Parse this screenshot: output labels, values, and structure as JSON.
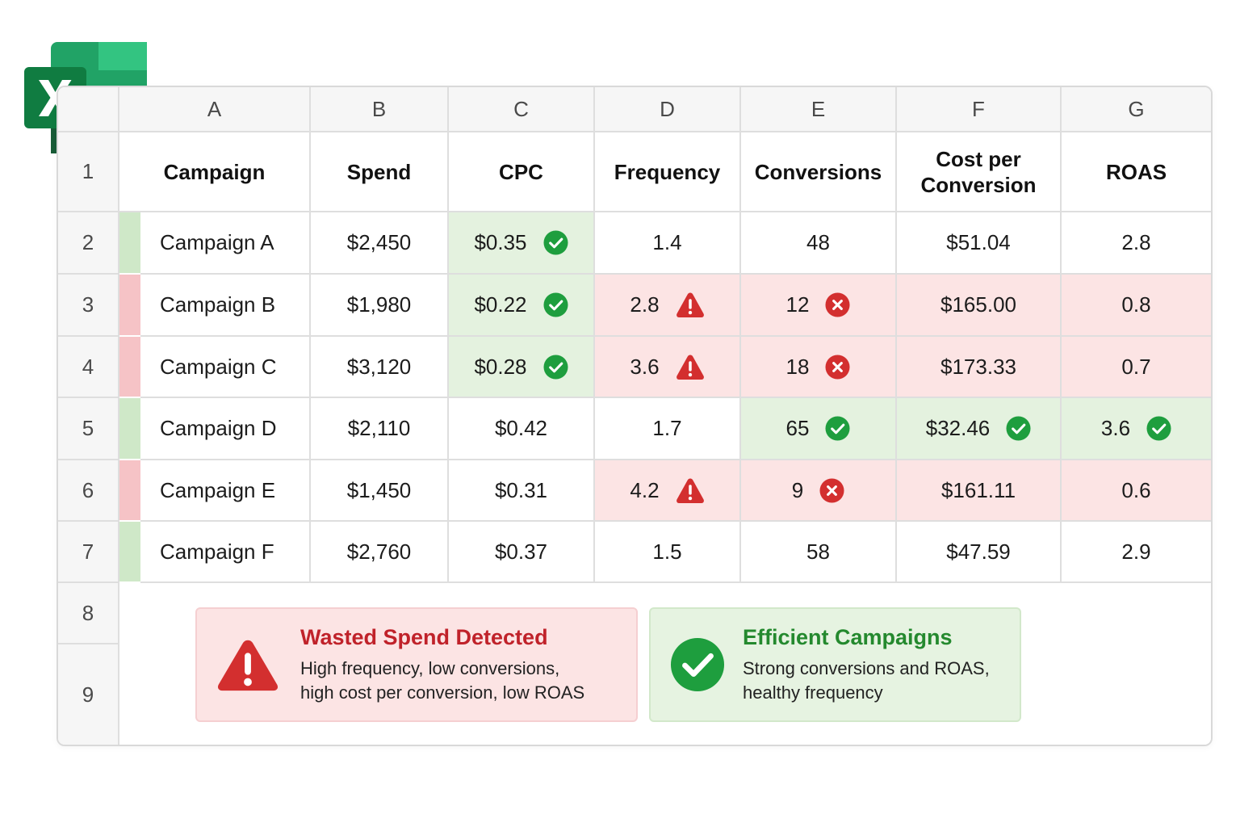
{
  "columns": [
    "A",
    "B",
    "C",
    "D",
    "E",
    "F",
    "G"
  ],
  "row_numbers": [
    "1",
    "2",
    "3",
    "4",
    "5",
    "6",
    "7",
    "8",
    "9"
  ],
  "headers": {
    "campaign": "Campaign",
    "spend": "Spend",
    "cpc": "CPC",
    "frequency": "Frequency",
    "conversions": "Conversions",
    "cost_per_conversion_line1": "Cost per",
    "cost_per_conversion_line2": "Conversion",
    "roas": "ROAS"
  },
  "rows": [
    {
      "campaign": "Campaign A",
      "spend": "$2,450",
      "cpc": "$0.35",
      "frequency": "1.4",
      "conversions": "48",
      "cost_per_conversion": "$51.04",
      "roas": "2.8",
      "status": "good"
    },
    {
      "campaign": "Campaign B",
      "spend": "$1,980",
      "cpc": "$0.22",
      "frequency": "2.8",
      "conversions": "12",
      "cost_per_conversion": "$165.00",
      "roas": "0.8",
      "status": "bad"
    },
    {
      "campaign": "Campaign C",
      "spend": "$3,120",
      "cpc": "$0.28",
      "frequency": "3.6",
      "conversions": "18",
      "cost_per_conversion": "$173.33",
      "roas": "0.7",
      "status": "bad"
    },
    {
      "campaign": "Campaign D",
      "spend": "$2,110",
      "cpc": "$0.42",
      "frequency": "1.7",
      "conversions": "65",
      "cost_per_conversion": "$32.46",
      "roas": "3.6",
      "status": "good"
    },
    {
      "campaign": "Campaign E",
      "spend": "$1,450",
      "cpc": "$0.31",
      "frequency": "4.2",
      "conversions": "9",
      "cost_per_conversion": "$161.11",
      "roas": "0.6",
      "status": "bad"
    },
    {
      "campaign": "Campaign F",
      "spend": "$2,760",
      "cpc": "$0.37",
      "frequency": "1.5",
      "conversions": "58",
      "cost_per_conversion": "$47.59",
      "roas": "2.9",
      "status": "good"
    }
  ],
  "legend": {
    "wasted": {
      "title": "Wasted Spend Detected",
      "line1": "High frequency, low conversions,",
      "line2": "high cost per conversion, low ROAS"
    },
    "efficient": {
      "title": "Efficient Campaigns",
      "line1": "Strong conversions and ROAS,",
      "line2": "healthy frequency"
    }
  },
  "icons": {
    "logo": "excel-logo",
    "good": "check-circle-icon",
    "warning": "warning-triangle-icon",
    "bad": "error-circle-icon"
  },
  "colors": {
    "bad_fill": "#fce4e4",
    "good_fill": "#e4f2df",
    "red_accent": "#d32f2f",
    "green_accent": "#1e9e3e",
    "excel_green": "#1e7145"
  }
}
